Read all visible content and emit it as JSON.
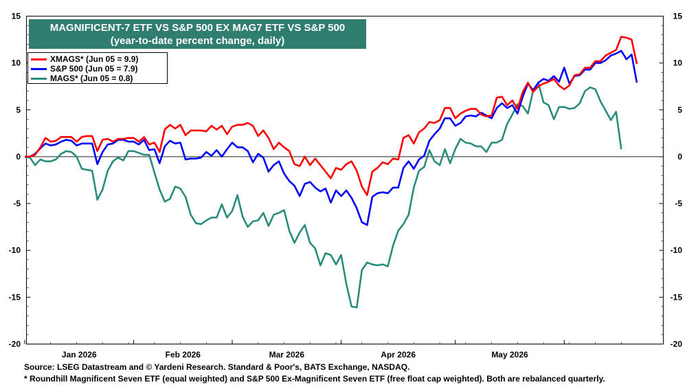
{
  "title_line1": "MAGNIFICENT-7 ETF VS S&P 500 EX MAG7 ETF VS S&P 500",
  "title_line2": "(year-to-date percent change, daily)",
  "footnote_source": "Source: LSEG Datastream and © Yardeni Research. Standard & Poor's, BATS Exchange, NASDAQ.",
  "footnote_note": "* Roundhill Magnificent Seven ETF (equal weighted) and S&P 500 Ex-Magnificent Seven ETF (free float cap weighted). Both are rebalanced quarterly.",
  "chart_data": {
    "type": "line",
    "ylim": [
      -20,
      15
    ],
    "yticks": [
      -20,
      -15,
      -10,
      -5,
      0,
      5,
      10,
      15
    ],
    "ytick_labels": [
      "-20",
      "-15",
      "-10",
      "-5",
      "0",
      "5",
      "10",
      "15"
    ],
    "month_labels": [
      "Jan 2026",
      "Feb 2026",
      "Mar 2026",
      "Apr 2026",
      "May 2026"
    ],
    "grid": false,
    "zero_line": true,
    "legend_placement": "top-left",
    "series": [
      {
        "name": "XMAGS* (Jun 05 = 9.9)",
        "color": "#ff0000",
        "values": [
          0.0,
          0.0,
          0.2,
          1.0,
          2.0,
          1.6,
          1.7,
          2.1,
          2.1,
          2.1,
          1.6,
          2.1,
          2.2,
          2.2,
          0.6,
          1.8,
          1.9,
          1.6,
          1.9,
          1.9,
          2.0,
          2.0,
          1.6,
          2.1,
          1.3,
          1.5,
          0.5,
          2.9,
          3.4,
          3.0,
          3.4,
          2.3,
          2.8,
          2.8,
          2.8,
          2.7,
          3.3,
          2.9,
          3.3,
          2.4,
          3.2,
          3.4,
          3.4,
          3.6,
          3.3,
          2.2,
          2.8,
          2.0,
          0.8,
          1.5,
          1.0,
          0.6,
          -0.8,
          -1.0,
          0.0,
          -0.9,
          -0.2,
          -0.9,
          -1.6,
          -2.3,
          -1.2,
          -1.4,
          -0.8,
          -0.5,
          -1.5,
          -3.2,
          -4.1,
          -1.6,
          -1.2,
          -0.6,
          -0.8,
          -0.2,
          -0.3,
          2.0,
          2.3,
          1.4,
          2.6,
          3.0,
          3.7,
          3.6,
          3.9,
          5.2,
          5.2,
          4.1,
          4.6,
          4.9,
          5.1,
          5.1,
          4.5,
          4.3,
          4.4,
          6.3,
          6.4,
          5.5,
          6.0,
          5.1,
          6.9,
          7.9,
          6.9,
          7.5,
          7.8,
          8.0,
          8.3,
          7.6,
          7.2,
          7.6,
          8.7,
          8.8,
          9.5,
          9.5,
          10.2,
          10.2,
          10.8,
          11.1,
          11.4,
          12.8,
          12.7,
          12.5,
          9.9
        ]
      },
      {
        "name": "S&P 500 (Jun 05 = 7.9)",
        "color": "#0000ff",
        "values": [
          0.0,
          0.0,
          0.3,
          0.9,
          1.4,
          1.2,
          1.3,
          1.6,
          1.8,
          1.7,
          1.2,
          1.4,
          1.4,
          1.4,
          -0.8,
          0.5,
          1.3,
          1.4,
          1.8,
          1.8,
          1.6,
          1.6,
          1.3,
          1.8,
          0.7,
          0.8,
          -0.7,
          1.1,
          1.7,
          1.4,
          1.5,
          -0.3,
          -0.2,
          -0.2,
          -0.1,
          0.5,
          0.1,
          0.7,
          0.0,
          0.8,
          1.5,
          1.0,
          1.0,
          0.6,
          -0.6,
          0.3,
          -0.1,
          -1.6,
          -0.9,
          -0.5,
          -1.8,
          -2.6,
          -3.1,
          -4.2,
          -2.9,
          -2.7,
          -3.3,
          -3.7,
          -3.4,
          -4.9,
          -3.6,
          -4.2,
          -3.6,
          -4.4,
          -5.5,
          -7.0,
          -7.3,
          -4.3,
          -3.9,
          -3.8,
          -3.9,
          -3.3,
          -3.3,
          -1.2,
          -0.5,
          -1.3,
          -0.3,
          0.1,
          1.7,
          2.4,
          3.0,
          4.1,
          4.1,
          3.3,
          3.6,
          4.3,
          4.4,
          4.3,
          4.7,
          4.4,
          4.1,
          5.2,
          5.7,
          5.2,
          5.5,
          4.6,
          6.4,
          7.8,
          7.1,
          7.9,
          8.3,
          8.1,
          8.6,
          8.0,
          9.5,
          7.8,
          8.6,
          8.7,
          9.3,
          9.3,
          10.0,
          10.0,
          10.3,
          10.8,
          11.0,
          11.3,
          10.4,
          10.9,
          7.9
        ]
      },
      {
        "name": "MAGS* (Jun 05 = 0.8)",
        "color": "#2a8c7d",
        "values": [
          0.0,
          -0.1,
          -0.9,
          -0.3,
          -0.5,
          -0.5,
          -0.3,
          0.3,
          0.6,
          0.5,
          0.0,
          -1.3,
          -1.4,
          -1.5,
          -4.6,
          -3.5,
          -1.5,
          -0.5,
          -0.1,
          -0.4,
          0.6,
          0.6,
          0.4,
          0.2,
          0.2,
          -1.7,
          -3.5,
          -4.8,
          -4.5,
          -3.2,
          -3.4,
          -4.3,
          -6.2,
          -7.1,
          -7.2,
          -6.8,
          -6.5,
          -6.5,
          -5.1,
          -6.5,
          -5.8,
          -4.1,
          -6.4,
          -7.5,
          -6.9,
          -6.8,
          -6.0,
          -7.4,
          -6.2,
          -6.0,
          -5.7,
          -7.9,
          -9.2,
          -8.1,
          -7.3,
          -9.2,
          -9.8,
          -11.6,
          -10.3,
          -10.5,
          -11.5,
          -10.5,
          -13.6,
          -16.0,
          -16.1,
          -12.1,
          -11.3,
          -11.5,
          -11.6,
          -11.5,
          -11.7,
          -9.5,
          -7.9,
          -7.2,
          -6.2,
          -3.3,
          -1.5,
          -1.1,
          0.7,
          -0.5,
          -0.9,
          0.8,
          -0.7,
          0.8,
          1.9,
          1.5,
          1.4,
          1.1,
          1.1,
          0.5,
          1.5,
          1.5,
          1.8,
          3.5,
          4.5,
          5.6,
          5.4,
          4.6,
          7.0,
          7.9,
          5.8,
          5.5,
          4.0,
          5.3,
          5.3,
          5.1,
          5.2,
          5.7,
          7.0,
          7.4,
          7.2,
          5.9,
          4.9,
          3.9,
          4.8,
          0.8
        ]
      }
    ]
  }
}
